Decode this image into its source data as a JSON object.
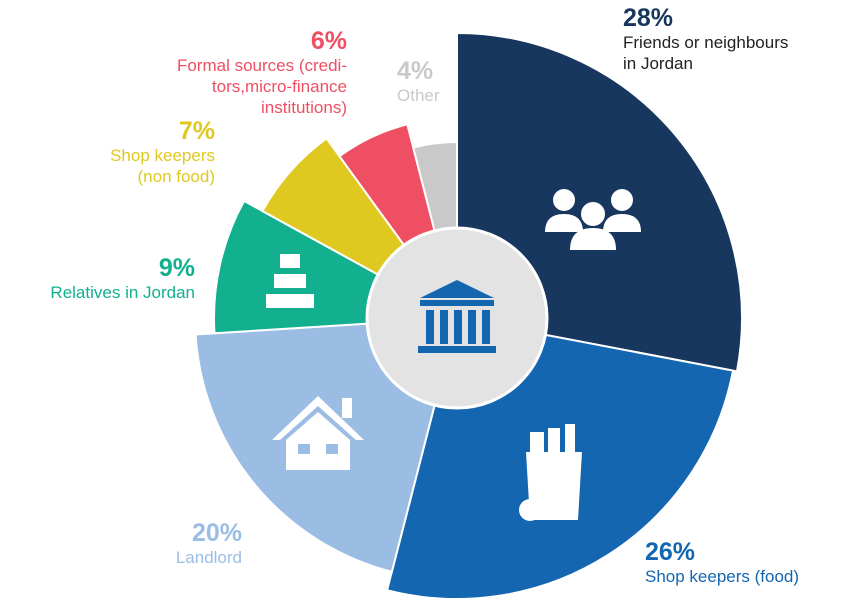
{
  "chart_data": {
    "type": "rose",
    "categories": [
      "Friends or neighbours\nin Jordan",
      "Shop keepers (food)",
      "Landlord",
      "Relatives in Jordan",
      "Shop keepers\n(non food)",
      "Formal sources (credi-\ntors,micro-finance\ninstitutions)",
      "Other"
    ],
    "values": [
      28,
      26,
      20,
      9,
      7,
      6,
      4
    ],
    "value_labels": [
      "28%",
      "26%",
      "20%",
      "9%",
      "7%",
      "6%",
      "4%"
    ],
    "colors": [
      "#17375e",
      "#1466b1",
      "#9bbde4",
      "#12b08f",
      "#dfc920",
      "#ef4f63",
      "#c9c9c9"
    ]
  }
}
